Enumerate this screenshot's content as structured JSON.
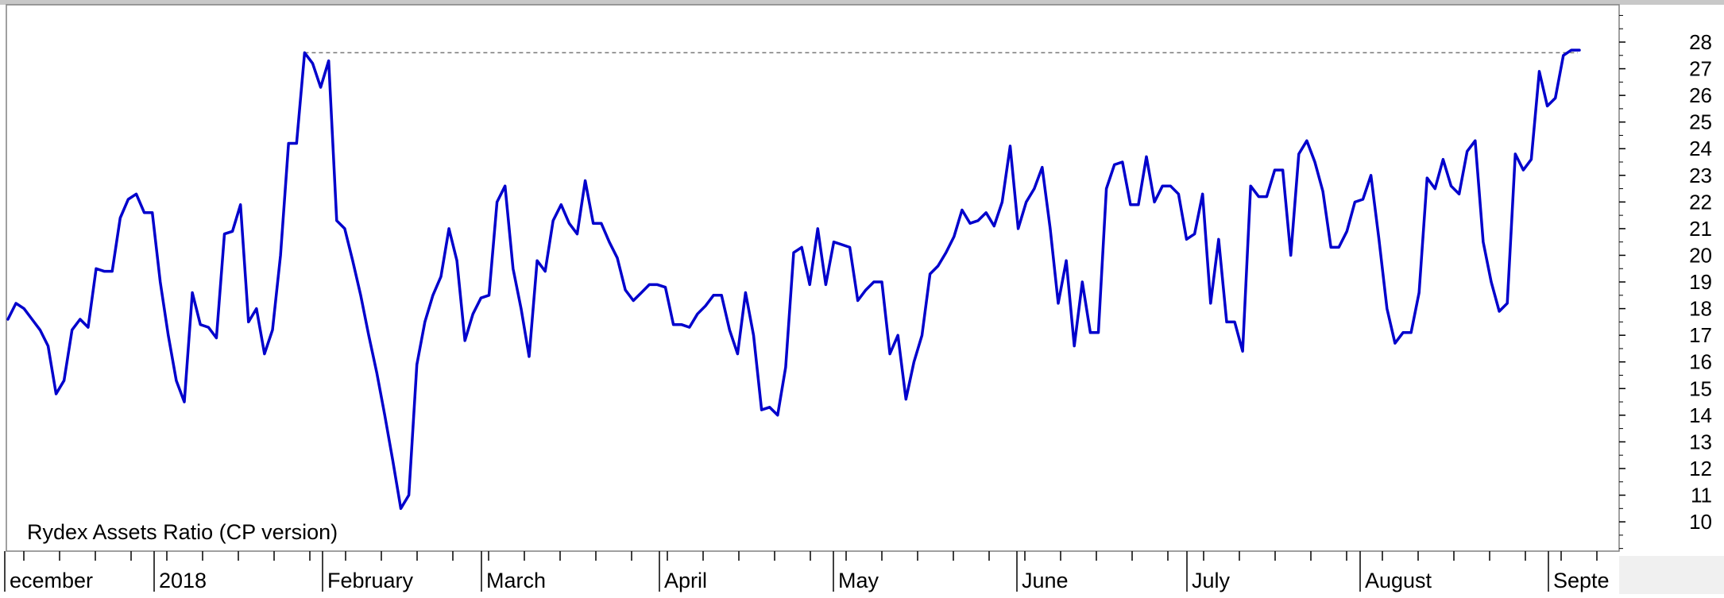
{
  "chart_data": {
    "type": "line",
    "title": "Rydex Assets Ratio (CP version)",
    "xlabel": "",
    "ylabel": "",
    "ylim": [
      8.9,
      29.4
    ],
    "yticks": [
      10,
      11,
      12,
      13,
      14,
      15,
      16,
      17,
      18,
      19,
      20,
      21,
      22,
      23,
      24,
      25,
      26,
      27,
      28
    ],
    "x_labels": [
      "ecember",
      "2018",
      "February",
      "March",
      "April",
      "May",
      "June",
      "July",
      "August",
      "Septe"
    ],
    "reference_line": {
      "value": 27.6,
      "style": "dashed"
    },
    "grid": false,
    "series": [
      {
        "color": "#0000cc",
        "values": [
          17.6,
          18.2,
          18.0,
          17.6,
          17.2,
          16.6,
          14.8,
          15.3,
          17.2,
          17.6,
          17.3,
          19.5,
          19.4,
          19.4,
          21.4,
          22.1,
          22.3,
          21.6,
          21.6,
          19.0,
          17.0,
          15.3,
          14.5,
          18.6,
          17.4,
          17.3,
          16.9,
          20.8,
          20.9,
          21.9,
          17.5,
          18.0,
          16.3,
          17.2,
          20.0,
          24.2,
          24.2,
          27.6,
          27.2,
          26.3,
          27.3,
          21.3,
          21.0,
          19.8,
          18.5,
          17.0,
          15.6,
          14.0,
          12.3,
          10.5,
          11.0,
          15.9,
          17.5,
          18.5,
          19.2,
          21.0,
          19.8,
          16.8,
          17.8,
          18.4,
          18.5,
          22.0,
          22.6,
          19.5,
          18.0,
          16.2,
          19.8,
          19.4,
          21.3,
          21.9,
          21.2,
          20.8,
          22.8,
          21.2,
          21.2,
          20.5,
          19.9,
          18.7,
          18.3,
          18.6,
          18.9,
          18.9,
          18.8,
          17.4,
          17.4,
          17.3,
          17.8,
          18.1,
          18.5,
          18.5,
          17.2,
          16.3,
          18.6,
          17.0,
          14.2,
          14.3,
          14.0,
          15.8,
          20.1,
          20.3,
          18.9,
          21.0,
          18.9,
          20.5,
          20.4,
          20.3,
          18.3,
          18.7,
          19.0,
          19.0,
          16.3,
          17.0,
          14.6,
          16.0,
          17.0,
          19.3,
          19.6,
          20.1,
          20.7,
          21.7,
          21.2,
          21.3,
          21.6,
          21.1,
          22.0,
          24.1,
          21.0,
          22.0,
          22.5,
          23.3,
          21.0,
          18.2,
          19.8,
          16.6,
          19.0,
          17.1,
          17.1,
          22.5,
          23.4,
          23.5,
          21.9,
          21.9,
          23.7,
          22.0,
          22.6,
          22.6,
          22.3,
          20.6,
          20.8,
          22.3,
          18.2,
          20.6,
          17.5,
          17.5,
          16.4,
          22.6,
          22.2,
          22.2,
          23.2,
          23.2,
          20.0,
          23.8,
          24.3,
          23.5,
          22.4,
          20.3,
          20.3,
          20.9,
          22.0,
          22.1,
          23.0,
          20.6,
          18.0,
          16.7,
          17.1,
          17.1,
          18.6,
          22.9,
          22.5,
          23.6,
          22.6,
          22.3,
          23.9,
          24.3,
          20.5,
          19.0,
          17.9,
          18.2,
          23.8,
          23.2,
          23.6,
          26.9,
          25.6,
          25.9,
          27.5,
          27.7,
          27.7
        ]
      }
    ]
  }
}
